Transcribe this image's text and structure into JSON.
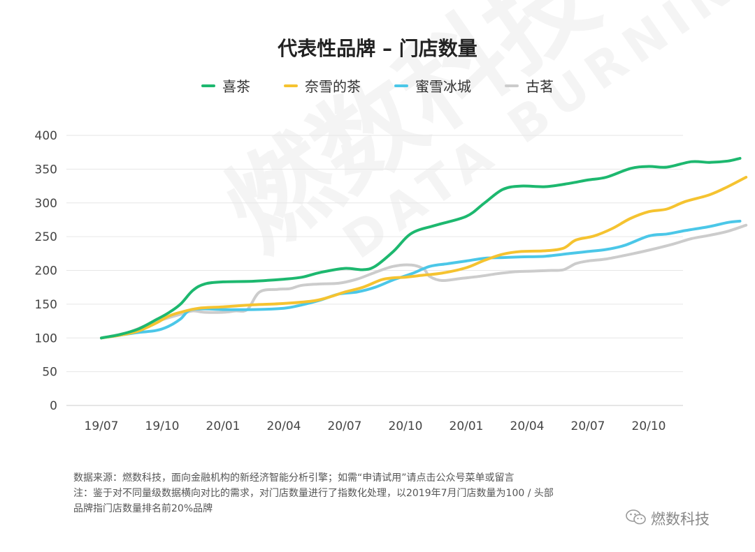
{
  "title": "代表性品牌 – 门店数量",
  "watermark": {
    "cn": "燃数科技",
    "en": "DATA BURNING"
  },
  "footer": {
    "source": "数据来源：燃数科技，面向金融机构的新经济智能分析引擎；如需“申请试用”请点击公众号菜单或留言",
    "note_line1": "注：鉴于对不同量级数据横向对比的需求，对门店数量进行了指数化处理，以2019年7月门店数量为100 / 头部",
    "note_line2": "品牌指门店数量排名前20%品牌"
  },
  "brand": {
    "label": "燃数科技",
    "icon": "wechat-icon"
  },
  "chart_data": {
    "type": "line",
    "title": "代表性品牌 – 门店数量",
    "xlabel": "",
    "ylabel": "",
    "ylim": [
      0,
      400
    ],
    "yticks": [
      0,
      50,
      100,
      150,
      200,
      250,
      300,
      350,
      400
    ],
    "xticks": [
      "19/07",
      "19/10",
      "20/01",
      "20/04",
      "20/07",
      "20/10",
      "20/01",
      "20/04",
      "20/07",
      "20/10"
    ],
    "x_start": 0,
    "x_end": 9.3,
    "grid": true,
    "legend_position": "top-center",
    "series": [
      {
        "name": "喜茶",
        "color": "#1DB86F",
        "points": [
          [
            0,
            100
          ],
          [
            0.3,
            105
          ],
          [
            0.6,
            113
          ],
          [
            0.9,
            127
          ],
          [
            1.1,
            137
          ],
          [
            1.3,
            150
          ],
          [
            1.5,
            170
          ],
          [
            1.7,
            180
          ],
          [
            2.0,
            183
          ],
          [
            2.5,
            184
          ],
          [
            3.0,
            187
          ],
          [
            3.3,
            190
          ],
          [
            3.6,
            197
          ],
          [
            4.0,
            203
          ],
          [
            4.3,
            201
          ],
          [
            4.5,
            206
          ],
          [
            4.8,
            228
          ],
          [
            5.1,
            255
          ],
          [
            5.5,
            267
          ],
          [
            6.0,
            280
          ],
          [
            6.3,
            300
          ],
          [
            6.6,
            320
          ],
          [
            6.9,
            325
          ],
          [
            7.3,
            324
          ],
          [
            7.7,
            329
          ],
          [
            8.0,
            334
          ],
          [
            8.3,
            338
          ],
          [
            8.7,
            351
          ],
          [
            9.0,
            354
          ],
          [
            9.3,
            353
          ],
          [
            9.7,
            361
          ],
          [
            10.0,
            360
          ],
          [
            10.3,
            362
          ],
          [
            10.5,
            366
          ]
        ]
      },
      {
        "name": "奈雪的茶",
        "color": "#F5C330",
        "points": [
          [
            0,
            100
          ],
          [
            0.3,
            104
          ],
          [
            0.6,
            110
          ],
          [
            0.9,
            122
          ],
          [
            1.1,
            132
          ],
          [
            1.3,
            138
          ],
          [
            1.6,
            144
          ],
          [
            2.0,
            146
          ],
          [
            2.5,
            149
          ],
          [
            3.0,
            151
          ],
          [
            3.5,
            155
          ],
          [
            3.8,
            162
          ],
          [
            4.0,
            168
          ],
          [
            4.3,
            175
          ],
          [
            4.6,
            186
          ],
          [
            4.8,
            189
          ],
          [
            5.0,
            190
          ],
          [
            5.3,
            193
          ],
          [
            5.6,
            196
          ],
          [
            6.0,
            204
          ],
          [
            6.3,
            215
          ],
          [
            6.6,
            224
          ],
          [
            6.9,
            228
          ],
          [
            7.3,
            229
          ],
          [
            7.6,
            233
          ],
          [
            7.8,
            245
          ],
          [
            8.1,
            251
          ],
          [
            8.4,
            262
          ],
          [
            8.7,
            277
          ],
          [
            9.0,
            287
          ],
          [
            9.3,
            291
          ],
          [
            9.6,
            302
          ],
          [
            10.0,
            312
          ],
          [
            10.3,
            324
          ],
          [
            10.6,
            338
          ]
        ]
      },
      {
        "name": "蜜雪冰城",
        "color": "#4BC7E8",
        "points": [
          [
            0,
            100
          ],
          [
            0.3,
            104
          ],
          [
            0.6,
            108
          ],
          [
            0.9,
            111
          ],
          [
            1.1,
            117
          ],
          [
            1.3,
            128
          ],
          [
            1.45,
            141
          ],
          [
            1.7,
            143
          ],
          [
            2.0,
            142
          ],
          [
            2.5,
            142
          ],
          [
            3.0,
            144
          ],
          [
            3.3,
            149
          ],
          [
            3.6,
            156
          ],
          [
            3.9,
            165
          ],
          [
            4.2,
            168
          ],
          [
            4.5,
            175
          ],
          [
            4.8,
            186
          ],
          [
            5.1,
            195
          ],
          [
            5.4,
            206
          ],
          [
            5.7,
            210
          ],
          [
            6.0,
            214
          ],
          [
            6.3,
            218
          ],
          [
            6.6,
            219
          ],
          [
            6.9,
            220
          ],
          [
            7.3,
            221
          ],
          [
            7.7,
            225
          ],
          [
            8.0,
            228
          ],
          [
            8.3,
            231
          ],
          [
            8.6,
            237
          ],
          [
            9.0,
            251
          ],
          [
            9.3,
            254
          ],
          [
            9.6,
            259
          ],
          [
            10.0,
            265
          ],
          [
            10.3,
            271
          ],
          [
            10.5,
            273
          ]
        ]
      },
      {
        "name": "古茗",
        "color": "#CCCCCC",
        "points": [
          [
            0,
            100
          ],
          [
            0.3,
            105
          ],
          [
            0.5,
            110
          ],
          [
            0.8,
            121
          ],
          [
            1.0,
            127
          ],
          [
            1.3,
            135
          ],
          [
            1.5,
            140
          ],
          [
            1.7,
            138
          ],
          [
            2.0,
            138
          ],
          [
            2.2,
            140
          ],
          [
            2.4,
            142
          ],
          [
            2.6,
            168
          ],
          [
            2.9,
            172
          ],
          [
            3.1,
            173
          ],
          [
            3.3,
            178
          ],
          [
            3.6,
            180
          ],
          [
            3.9,
            181
          ],
          [
            4.2,
            187
          ],
          [
            4.5,
            197
          ],
          [
            4.8,
            206
          ],
          [
            5.1,
            208
          ],
          [
            5.3,
            202
          ],
          [
            5.4,
            191
          ],
          [
            5.6,
            185
          ],
          [
            5.9,
            188
          ],
          [
            6.2,
            191
          ],
          [
            6.5,
            195
          ],
          [
            6.8,
            198
          ],
          [
            7.1,
            199
          ],
          [
            7.4,
            200
          ],
          [
            7.6,
            201
          ],
          [
            7.8,
            210
          ],
          [
            8.0,
            214
          ],
          [
            8.3,
            217
          ],
          [
            8.7,
            224
          ],
          [
            9.0,
            230
          ],
          [
            9.4,
            239
          ],
          [
            9.7,
            247
          ],
          [
            10.0,
            252
          ],
          [
            10.3,
            258
          ],
          [
            10.6,
            267
          ]
        ]
      }
    ]
  }
}
